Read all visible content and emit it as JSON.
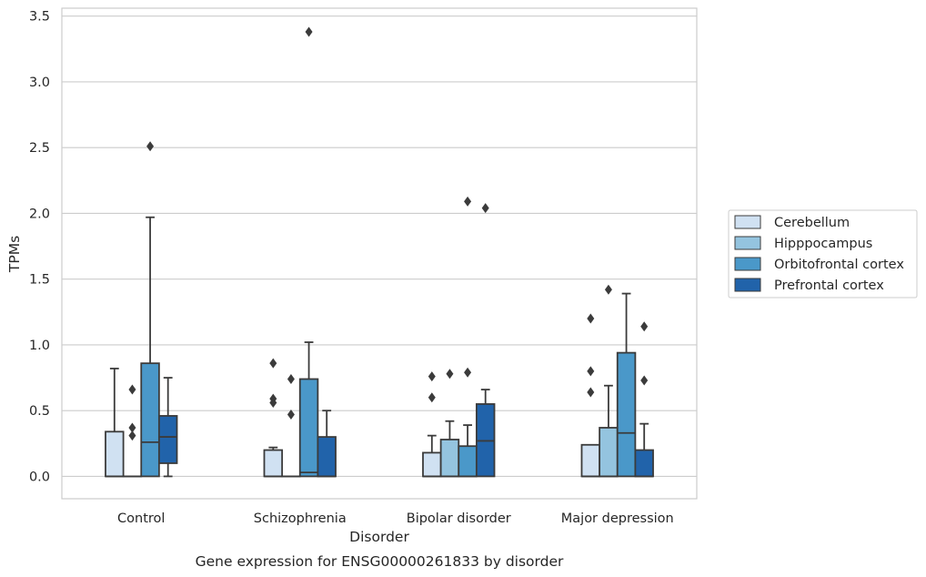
{
  "chart_data": {
    "type": "box",
    "caption": "Gene expression for ENSG00000261833 by disorder",
    "xlabel": "Disorder",
    "ylabel": "TPMs",
    "ylim": [
      -0.17,
      3.56
    ],
    "yticks": [
      0.0,
      0.5,
      1.0,
      1.5,
      2.0,
      2.5,
      3.0,
      3.5
    ],
    "ytick_labels": [
      "0.0",
      "0.5",
      "1.0",
      "1.5",
      "2.0",
      "2.5",
      "3.0",
      "3.5"
    ],
    "grid": "horizontal",
    "legend_placement": "right",
    "categories": [
      "Control",
      "Schizophrenia",
      "Bipolar disorder",
      "Major depression"
    ],
    "series": [
      {
        "name": "Cerebellum",
        "color": "#d0e1f2",
        "boxes": [
          {
            "q1": 0.0,
            "median": 0.0,
            "q3": 0.34,
            "whisker_low": 0.0,
            "whisker_high": 0.82,
            "outliers": []
          },
          {
            "q1": 0.0,
            "median": 0.0,
            "q3": 0.2,
            "whisker_low": 0.0,
            "whisker_high": 0.22,
            "outliers": [
              0.86,
              0.59,
              0.56
            ]
          },
          {
            "q1": 0.0,
            "median": 0.0,
            "q3": 0.18,
            "whisker_low": 0.0,
            "whisker_high": 0.31,
            "outliers": [
              0.76,
              0.6
            ]
          },
          {
            "q1": 0.0,
            "median": 0.0,
            "q3": 0.24,
            "whisker_low": 0.0,
            "whisker_high": 0.24,
            "outliers": [
              1.2,
              0.8,
              0.64
            ]
          }
        ]
      },
      {
        "name": "Hipppocampus",
        "color": "#94c4df",
        "boxes": [
          {
            "q1": 0.0,
            "median": 0.0,
            "q3": 0.0,
            "whisker_low": 0.0,
            "whisker_high": 0.0,
            "outliers": [
              0.66,
              0.37,
              0.31
            ]
          },
          {
            "q1": 0.0,
            "median": 0.0,
            "q3": 0.0,
            "whisker_low": 0.0,
            "whisker_high": 0.0,
            "outliers": [
              0.74,
              0.47
            ]
          },
          {
            "q1": 0.0,
            "median": 0.0,
            "q3": 0.28,
            "whisker_low": 0.0,
            "whisker_high": 0.42,
            "outliers": [
              0.78
            ]
          },
          {
            "q1": 0.0,
            "median": 0.0,
            "q3": 0.37,
            "whisker_low": 0.0,
            "whisker_high": 0.69,
            "outliers": [
              1.42
            ]
          }
        ]
      },
      {
        "name": "Orbitofrontal cortex",
        "color": "#4a98c9",
        "boxes": [
          {
            "q1": 0.0,
            "median": 0.26,
            "q3": 0.86,
            "whisker_low": 0.0,
            "whisker_high": 1.97,
            "outliers": [
              2.51
            ]
          },
          {
            "q1": 0.0,
            "median": 0.03,
            "q3": 0.74,
            "whisker_low": 0.0,
            "whisker_high": 1.02,
            "outliers": [
              3.38
            ]
          },
          {
            "q1": 0.0,
            "median": 0.0,
            "q3": 0.23,
            "whisker_low": 0.0,
            "whisker_high": 0.39,
            "outliers": [
              2.09,
              0.79
            ]
          },
          {
            "q1": 0.0,
            "median": 0.33,
            "q3": 0.94,
            "whisker_low": 0.0,
            "whisker_high": 1.39,
            "outliers": []
          }
        ]
      },
      {
        "name": "Prefrontal cortex",
        "color": "#2163aa",
        "boxes": [
          {
            "q1": 0.1,
            "median": 0.3,
            "q3": 0.46,
            "whisker_low": 0.0,
            "whisker_high": 0.75,
            "outliers": []
          },
          {
            "q1": 0.0,
            "median": 0.0,
            "q3": 0.3,
            "whisker_low": 0.0,
            "whisker_high": 0.5,
            "outliers": []
          },
          {
            "q1": 0.0,
            "median": 0.27,
            "q3": 0.55,
            "whisker_low": 0.0,
            "whisker_high": 0.66,
            "outliers": [
              2.04
            ]
          },
          {
            "q1": 0.0,
            "median": 0.0,
            "q3": 0.2,
            "whisker_low": 0.0,
            "whisker_high": 0.4,
            "outliers": [
              1.14,
              0.73
            ]
          }
        ]
      }
    ]
  }
}
